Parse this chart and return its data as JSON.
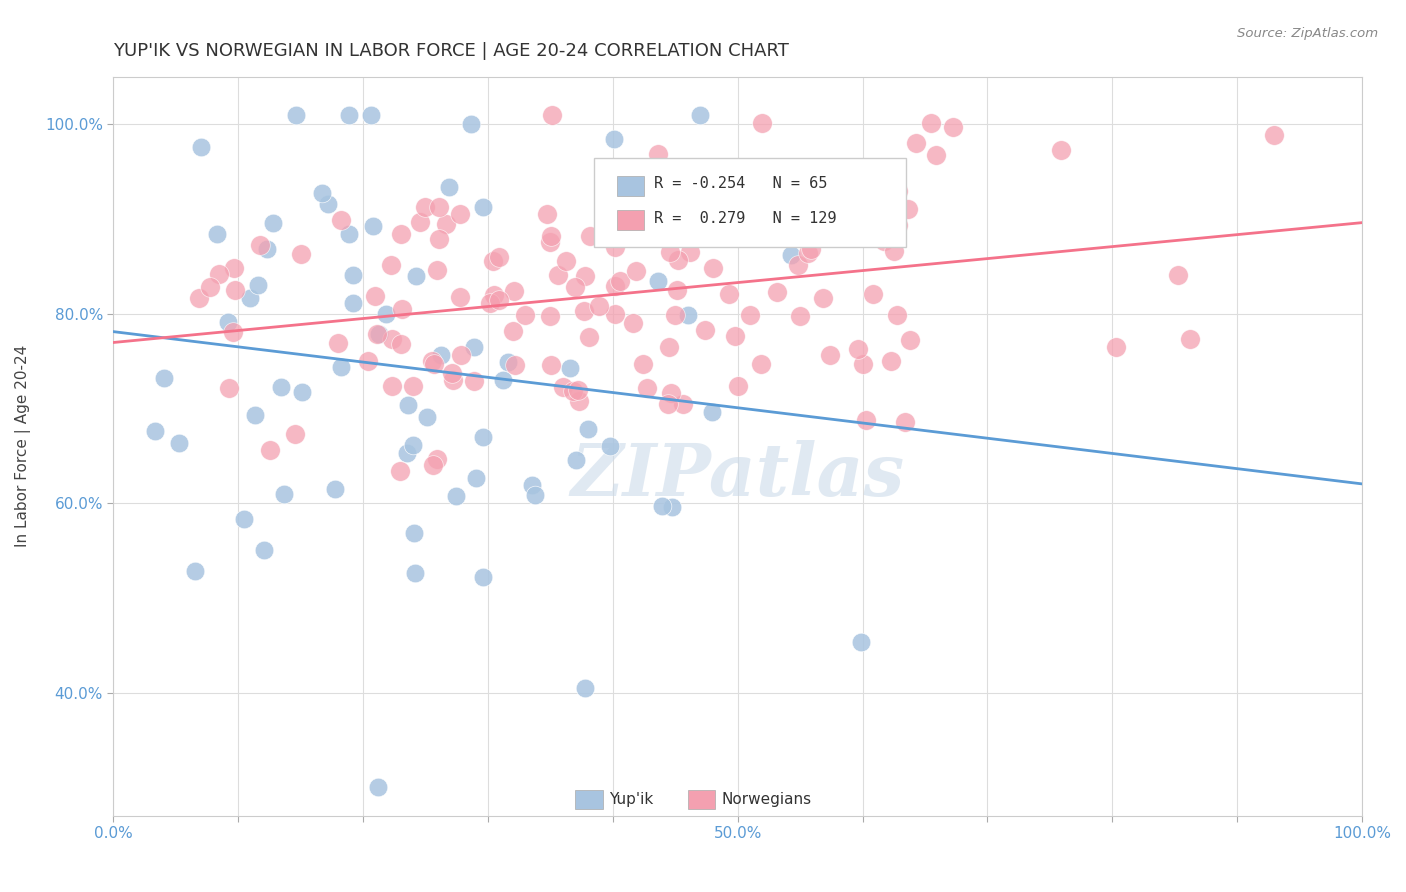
{
  "title": "YUP'IK VS NORWEGIAN IN LABOR FORCE | AGE 20-24 CORRELATION CHART",
  "source": "Source: ZipAtlas.com",
  "xlabel": "",
  "ylabel": "In Labor Force | Age 20-24",
  "xlim": [
    0.0,
    1.0
  ],
  "ylim": [
    0.27,
    1.05
  ],
  "xticks": [
    0.0,
    0.1,
    0.2,
    0.3,
    0.4,
    0.5,
    0.6,
    0.7,
    0.8,
    0.9,
    1.0
  ],
  "xticklabels": [
    "0.0%",
    "",
    "",
    "",
    "",
    "50.0%",
    "",
    "",
    "",
    "",
    "100.0%"
  ],
  "yticks": [
    0.4,
    0.6,
    0.8,
    1.0
  ],
  "yticklabels": [
    "40.0%",
    "60.0%",
    "80.0%",
    "100.0%"
  ],
  "blue_color": "#a8c4e0",
  "pink_color": "#f4a0b0",
  "blue_line_color": "#5b9bd5",
  "pink_line_color": "#f4728a",
  "legend_r_blue": "-0.254",
  "legend_n_blue": "65",
  "legend_r_pink": "0.279",
  "legend_n_pink": "129",
  "watermark": "ZIPatlas",
  "background_color": "#ffffff",
  "grid_color": "#dddddd",
  "blue_seed": 42,
  "pink_seed": 7,
  "blue_n": 65,
  "pink_n": 129,
  "blue_r": -0.254,
  "pink_r": 0.279,
  "title_fontsize": 13,
  "label_fontsize": 11,
  "tick_fontsize": 11
}
